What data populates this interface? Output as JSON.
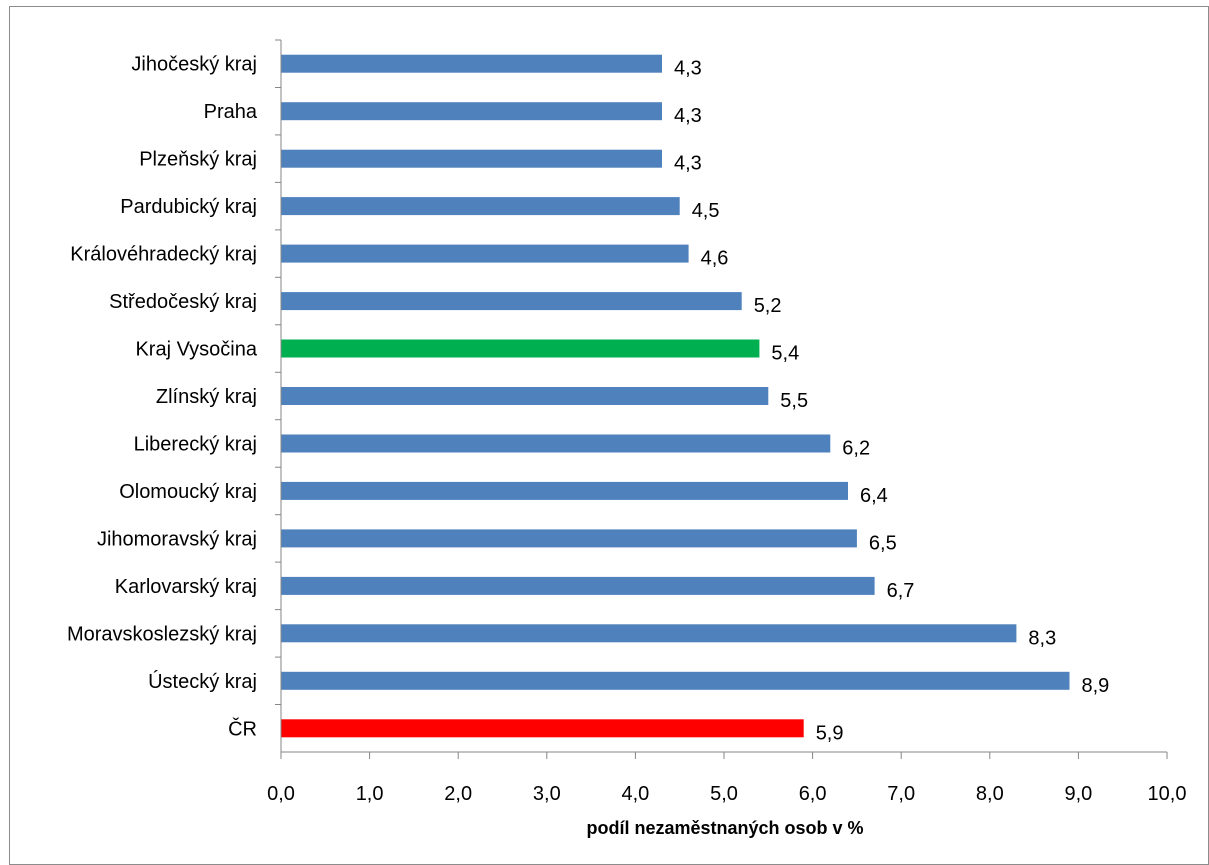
{
  "chart_data": {
    "type": "bar",
    "orientation": "horizontal",
    "xlabel": "podíl nezaměstnaných osob v %",
    "ylabel": "",
    "xlim": [
      0,
      10
    ],
    "x_tick_step": 1,
    "x_tick_labels": [
      "0,0",
      "1,0",
      "2,0",
      "3,0",
      "4,0",
      "5,0",
      "6,0",
      "7,0",
      "8,0",
      "9,0",
      "10,0"
    ],
    "grid": false,
    "categories": [
      "Jihočeský kraj",
      "Praha",
      "Plzeňský kraj",
      "Pardubický kraj",
      "Královéhradecký kraj",
      "Středočeský kraj",
      "Kraj Vysočina",
      "Zlínský kraj",
      "Liberecký kraj",
      "Olomoucký kraj",
      "Jihomoravský kraj",
      "Karlovarský kraj",
      "Moravskoslezský kraj",
      "Ústecký kraj",
      "ČR"
    ],
    "values": [
      4.3,
      4.3,
      4.3,
      4.5,
      4.6,
      5.2,
      5.4,
      5.5,
      6.2,
      6.4,
      6.5,
      6.7,
      8.3,
      8.9,
      5.9
    ],
    "value_labels": [
      "4,3",
      "4,3",
      "4,3",
      "4,5",
      "4,6",
      "5,2",
      "5,4",
      "5,5",
      "6,2",
      "6,4",
      "6,5",
      "6,7",
      "8,3",
      "8,9",
      "5,9"
    ],
    "bar_colors": [
      "#4f81bd",
      "#4f81bd",
      "#4f81bd",
      "#4f81bd",
      "#4f81bd",
      "#4f81bd",
      "#00b050",
      "#4f81bd",
      "#4f81bd",
      "#4f81bd",
      "#4f81bd",
      "#4f81bd",
      "#4f81bd",
      "#4f81bd",
      "#ff0000"
    ]
  }
}
